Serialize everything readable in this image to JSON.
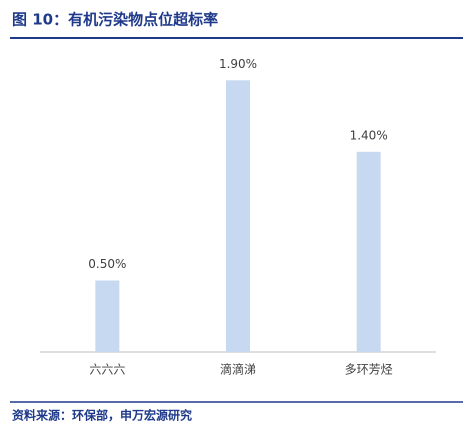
{
  "chart_data": {
    "type": "bar",
    "title": "图 10：有机污染物点位超标率",
    "categories": [
      "六六六",
      "滴滴涕",
      "多环芳烃"
    ],
    "values": [
      0.5,
      1.9,
      1.4
    ],
    "value_labels": [
      "0.50%",
      "1.90%",
      "1.40%"
    ],
    "color": "#c6d9f1",
    "ylim": [
      0,
      2
    ],
    "source": "资料来源：环保部，申万宏源研究"
  }
}
